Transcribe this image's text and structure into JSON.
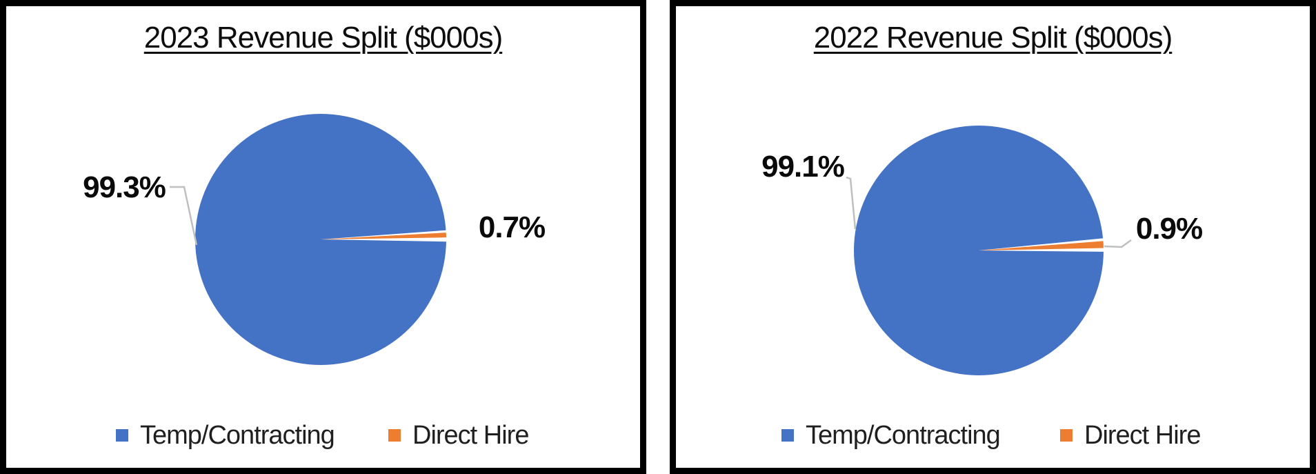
{
  "colors": {
    "series_blue": "#4472C4",
    "series_orange": "#ED7D31",
    "leader_gray": "#BFBFBF",
    "panel_border": "#000000",
    "background": "#FFFFFF"
  },
  "chart_data": [
    {
      "type": "pie",
      "title": "2023 Revenue Split ($000s)",
      "categories": [
        "Temp/Contracting",
        "Direct Hire"
      ],
      "values": [
        99.3,
        0.7
      ],
      "value_labels": [
        "99.3%",
        "0.7%"
      ],
      "unit": "percent",
      "colors": [
        "#4472C4",
        "#ED7D31"
      ],
      "legend_position": "bottom",
      "annotations": "large slice label has gray leader line to left edge of pie"
    },
    {
      "type": "pie",
      "title": "2022 Revenue Split ($000s)",
      "categories": [
        "Temp/Contracting",
        "Direct Hire"
      ],
      "values": [
        99.1,
        0.9
      ],
      "value_labels": [
        "99.1%",
        "0.9%"
      ],
      "unit": "percent",
      "colors": [
        "#4472C4",
        "#ED7D31"
      ],
      "legend_position": "bottom",
      "annotations": "both slice labels have gray leader lines"
    }
  ]
}
